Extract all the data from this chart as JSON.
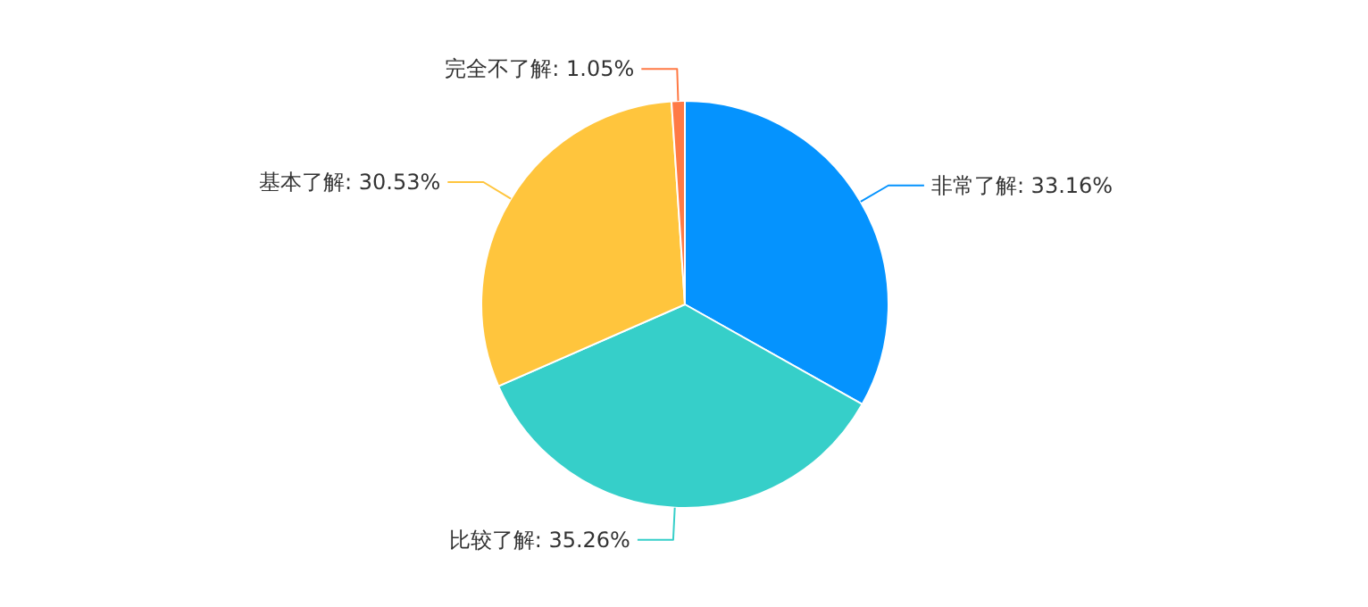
{
  "chart_data": {
    "type": "pie",
    "categories": [
      "非常了解",
      "比较了解",
      "基本了解",
      "完全不了解"
    ],
    "values": [
      33.16,
      35.26,
      30.53,
      1.05
    ],
    "value_labels": [
      "33.16%",
      "35.26%",
      "30.53%",
      "1.05%"
    ],
    "colors": [
      "#0593fe",
      "#36cfc9",
      "#ffc53d",
      "#ff7a45"
    ]
  }
}
